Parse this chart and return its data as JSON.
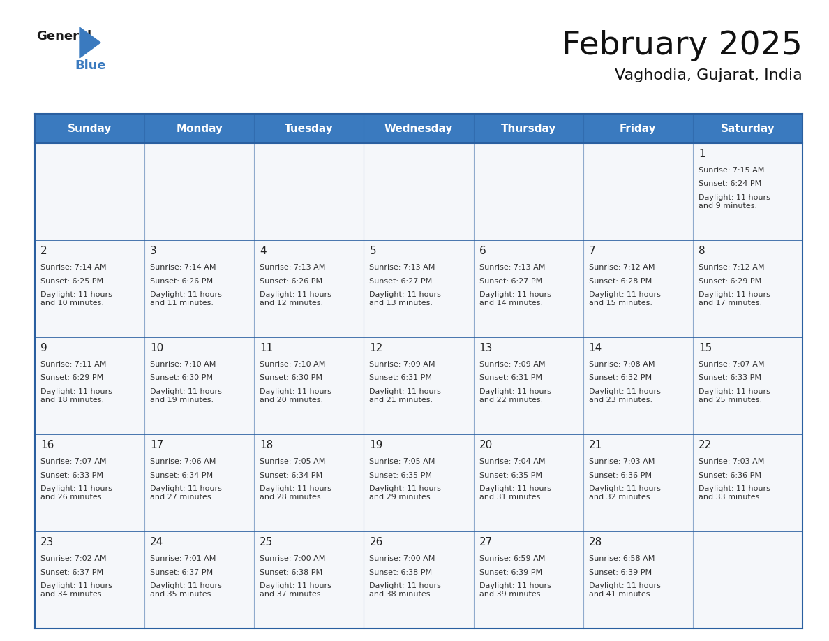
{
  "title": "February 2025",
  "subtitle": "Vaghodia, Gujarat, India",
  "header_bg": "#3a7abf",
  "header_text": "#ffffff",
  "border_color": "#2a5fa0",
  "text_color": "#333333",
  "days_of_week": [
    "Sunday",
    "Monday",
    "Tuesday",
    "Wednesday",
    "Thursday",
    "Friday",
    "Saturday"
  ],
  "calendar_data": [
    [
      null,
      null,
      null,
      null,
      null,
      null,
      {
        "day": 1,
        "sunrise": "7:15 AM",
        "sunset": "6:24 PM",
        "daylight": "11 hours\nand 9 minutes."
      }
    ],
    [
      {
        "day": 2,
        "sunrise": "7:14 AM",
        "sunset": "6:25 PM",
        "daylight": "11 hours\nand 10 minutes."
      },
      {
        "day": 3,
        "sunrise": "7:14 AM",
        "sunset": "6:26 PM",
        "daylight": "11 hours\nand 11 minutes."
      },
      {
        "day": 4,
        "sunrise": "7:13 AM",
        "sunset": "6:26 PM",
        "daylight": "11 hours\nand 12 minutes."
      },
      {
        "day": 5,
        "sunrise": "7:13 AM",
        "sunset": "6:27 PM",
        "daylight": "11 hours\nand 13 minutes."
      },
      {
        "day": 6,
        "sunrise": "7:13 AM",
        "sunset": "6:27 PM",
        "daylight": "11 hours\nand 14 minutes."
      },
      {
        "day": 7,
        "sunrise": "7:12 AM",
        "sunset": "6:28 PM",
        "daylight": "11 hours\nand 15 minutes."
      },
      {
        "day": 8,
        "sunrise": "7:12 AM",
        "sunset": "6:29 PM",
        "daylight": "11 hours\nand 17 minutes."
      }
    ],
    [
      {
        "day": 9,
        "sunrise": "7:11 AM",
        "sunset": "6:29 PM",
        "daylight": "11 hours\nand 18 minutes."
      },
      {
        "day": 10,
        "sunrise": "7:10 AM",
        "sunset": "6:30 PM",
        "daylight": "11 hours\nand 19 minutes."
      },
      {
        "day": 11,
        "sunrise": "7:10 AM",
        "sunset": "6:30 PM",
        "daylight": "11 hours\nand 20 minutes."
      },
      {
        "day": 12,
        "sunrise": "7:09 AM",
        "sunset": "6:31 PM",
        "daylight": "11 hours\nand 21 minutes."
      },
      {
        "day": 13,
        "sunrise": "7:09 AM",
        "sunset": "6:31 PM",
        "daylight": "11 hours\nand 22 minutes."
      },
      {
        "day": 14,
        "sunrise": "7:08 AM",
        "sunset": "6:32 PM",
        "daylight": "11 hours\nand 23 minutes."
      },
      {
        "day": 15,
        "sunrise": "7:07 AM",
        "sunset": "6:33 PM",
        "daylight": "11 hours\nand 25 minutes."
      }
    ],
    [
      {
        "day": 16,
        "sunrise": "7:07 AM",
        "sunset": "6:33 PM",
        "daylight": "11 hours\nand 26 minutes."
      },
      {
        "day": 17,
        "sunrise": "7:06 AM",
        "sunset": "6:34 PM",
        "daylight": "11 hours\nand 27 minutes."
      },
      {
        "day": 18,
        "sunrise": "7:05 AM",
        "sunset": "6:34 PM",
        "daylight": "11 hours\nand 28 minutes."
      },
      {
        "day": 19,
        "sunrise": "7:05 AM",
        "sunset": "6:35 PM",
        "daylight": "11 hours\nand 29 minutes."
      },
      {
        "day": 20,
        "sunrise": "7:04 AM",
        "sunset": "6:35 PM",
        "daylight": "11 hours\nand 31 minutes."
      },
      {
        "day": 21,
        "sunrise": "7:03 AM",
        "sunset": "6:36 PM",
        "daylight": "11 hours\nand 32 minutes."
      },
      {
        "day": 22,
        "sunrise": "7:03 AM",
        "sunset": "6:36 PM",
        "daylight": "11 hours\nand 33 minutes."
      }
    ],
    [
      {
        "day": 23,
        "sunrise": "7:02 AM",
        "sunset": "6:37 PM",
        "daylight": "11 hours\nand 34 minutes."
      },
      {
        "day": 24,
        "sunrise": "7:01 AM",
        "sunset": "6:37 PM",
        "daylight": "11 hours\nand 35 minutes."
      },
      {
        "day": 25,
        "sunrise": "7:00 AM",
        "sunset": "6:38 PM",
        "daylight": "11 hours\nand 37 minutes."
      },
      {
        "day": 26,
        "sunrise": "7:00 AM",
        "sunset": "6:38 PM",
        "daylight": "11 hours\nand 38 minutes."
      },
      {
        "day": 27,
        "sunrise": "6:59 AM",
        "sunset": "6:39 PM",
        "daylight": "11 hours\nand 39 minutes."
      },
      {
        "day": 28,
        "sunrise": "6:58 AM",
        "sunset": "6:39 PM",
        "daylight": "11 hours\nand 41 minutes."
      },
      null
    ]
  ]
}
